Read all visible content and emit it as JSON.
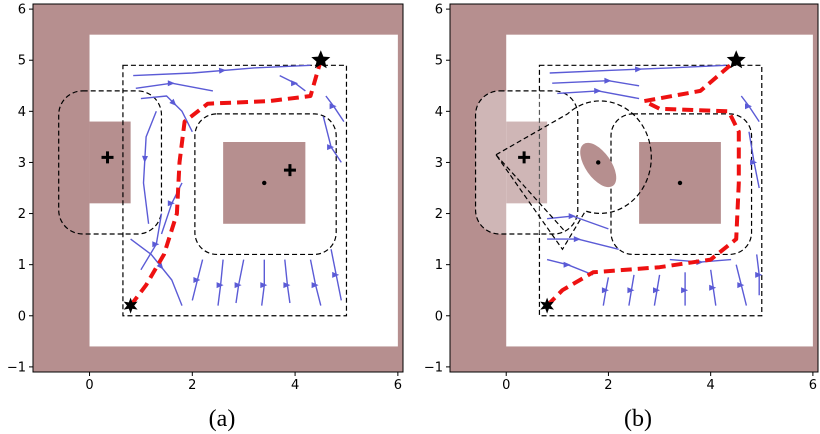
{
  "colors": {
    "obstacle": "#b68f8f",
    "obstacle_light": "#d2b8b8",
    "free": "#ffffff",
    "stream": "#5b5bd6",
    "path": "#ee1111",
    "boundary": "#000000"
  },
  "axes": {
    "xlim": [
      -1.1,
      6.1
    ],
    "ylim": [
      -1.1,
      6.1
    ],
    "xticks": [
      "0",
      "2",
      "4",
      "6"
    ],
    "xtick_values": [
      0,
      2,
      4,
      6
    ],
    "yticks": [
      "−1",
      "0",
      "1",
      "2",
      "3",
      "4",
      "5",
      "6"
    ],
    "ytick_values": [
      -1,
      0,
      1,
      2,
      3,
      4,
      5,
      6
    ]
  },
  "panels": [
    {
      "caption": "(a)",
      "start": [
        0.8,
        0.2
      ],
      "goal": [
        4.5,
        5.0
      ],
      "crosses": [
        [
          0.35,
          3.1
        ],
        [
          3.9,
          2.85
        ]
      ],
      "dots": [
        [
          3.4,
          2.6
        ]
      ],
      "obstacles_rect": [
        [
          2.6,
          1.8,
          4.2,
          3.4
        ],
        [
          0.0,
          2.2,
          0.8,
          3.8
        ]
      ],
      "path": [
        [
          0.8,
          0.2
        ],
        [
          1.1,
          0.6
        ],
        [
          1.45,
          1.2
        ],
        [
          1.7,
          2.0
        ],
        [
          1.75,
          3.0
        ],
        [
          1.85,
          3.8
        ],
        [
          2.3,
          4.15
        ],
        [
          3.5,
          4.2
        ],
        [
          4.3,
          4.3
        ],
        [
          4.5,
          5.0
        ]
      ]
    },
    {
      "caption": "(b)",
      "start": [
        0.8,
        0.2
      ],
      "goal": [
        4.5,
        5.0
      ],
      "crosses": [
        [
          0.35,
          3.1
        ]
      ],
      "dots": [
        [
          1.8,
          3.0
        ],
        [
          3.4,
          2.6
        ]
      ],
      "obstacles_rect": [
        [
          2.6,
          1.8,
          4.2,
          3.4
        ],
        [
          0.0,
          2.2,
          0.8,
          3.8
        ]
      ],
      "ellipse": [
        1.8,
        2.95,
        0.25,
        0.5,
        -35
      ],
      "path": [
        [
          0.8,
          0.2
        ],
        [
          1.1,
          0.5
        ],
        [
          1.7,
          0.85
        ],
        [
          3.0,
          0.95
        ],
        [
          4.0,
          1.1
        ],
        [
          4.5,
          1.5
        ],
        [
          4.55,
          2.6
        ],
        [
          4.55,
          3.6
        ],
        [
          4.35,
          4.0
        ],
        [
          3.0,
          4.05
        ],
        [
          2.7,
          4.2
        ],
        [
          3.8,
          4.4
        ],
        [
          4.5,
          5.0
        ]
      ]
    }
  ]
}
